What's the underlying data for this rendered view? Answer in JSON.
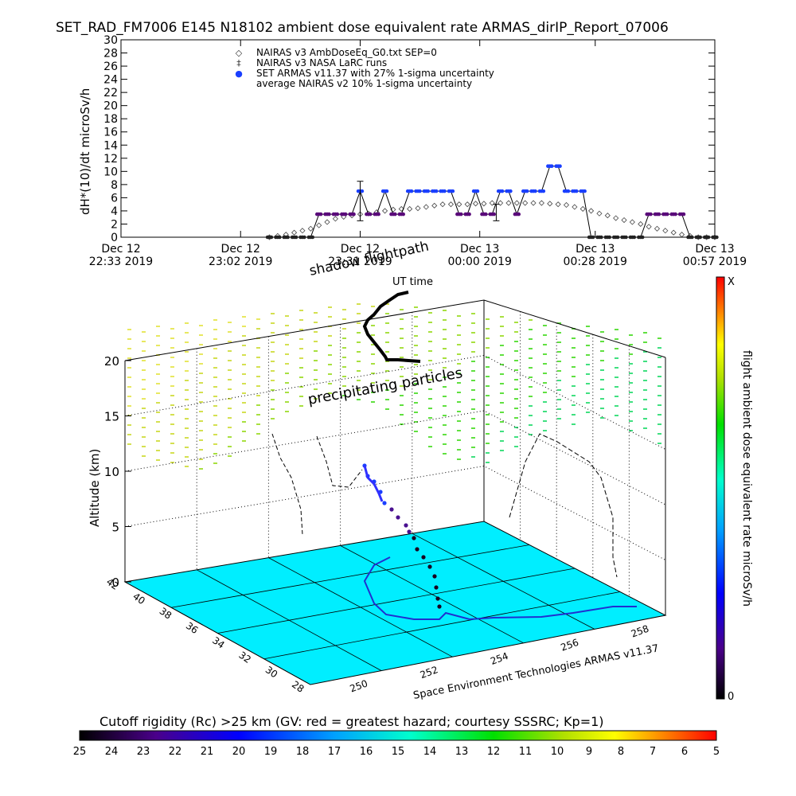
{
  "title": "SET_RAD_FM7006  E145 N18102 ambient dose equivalent rate ARMAS_dirIP_Report_07006",
  "chart_data": [
    {
      "type": "scatter",
      "panel": "dose-rate time series",
      "ylabel": "dH*(10)/dt microSv/h",
      "ylim": [
        0,
        30
      ],
      "y_ticks": [
        0,
        2,
        4,
        6,
        8,
        10,
        12,
        14,
        16,
        18,
        20,
        22,
        24,
        26,
        28,
        30
      ],
      "x_ticks": [
        {
          "line1": "Dec 12",
          "line2": "22:33 2019"
        },
        {
          "line1": "Dec 12",
          "line2": "23:02 2019"
        },
        {
          "line1": "Dec 12",
          "line2": "23:31 2019"
        },
        {
          "line1": "Dec 13",
          "line2": "00:00 2019"
        },
        {
          "line1": "Dec 13",
          "line2": "00:28 2019"
        },
        {
          "line1": "Dec 13",
          "line2": "00:57 2019"
        }
      ],
      "x_tick_minutes": [
        0,
        29,
        58,
        87,
        115,
        144
      ],
      "legend": [
        {
          "symbol": "◇",
          "label": "NAIRAS v3 AmbDoseEq_G0.txt SEP=0"
        },
        {
          "symbol": "‡",
          "label": "NAIRAS v3 NASA LaRC runs"
        },
        {
          "symbol": "●",
          "label": "SET ARMAS v11.37 with 27% 1-sigma uncertainty"
        },
        {
          "symbol": "",
          "label": "average NAIRAS v2 10% 1-sigma uncertainty"
        }
      ],
      "legend_position": "top-left",
      "series": [
        {
          "name": "NAIRAS v3 AmbDoseEq_G0.txt SEP=0",
          "marker": "diamond",
          "x_minutes": [
            36,
            38,
            40,
            42,
            44,
            46,
            48,
            50,
            52,
            54,
            56,
            58,
            60,
            62,
            64,
            66,
            68,
            70,
            72,
            74,
            76,
            78,
            80,
            82,
            84,
            86,
            88,
            90,
            92,
            94,
            96,
            98,
            100,
            102,
            104,
            106,
            108,
            110,
            112,
            114,
            116,
            118,
            120,
            122,
            124,
            126,
            128,
            130,
            132,
            134,
            136,
            138,
            140,
            142,
            144
          ],
          "values": [
            0,
            0.2,
            0.4,
            0.7,
            1,
            1.3,
            1.8,
            2.3,
            2.8,
            3.1,
            3.3,
            3.5,
            3.6,
            3.8,
            4,
            4.2,
            4.3,
            4.3,
            4.4,
            4.6,
            4.8,
            5,
            5,
            5,
            5,
            5.1,
            5.1,
            5.2,
            5.2,
            5.2,
            5.2,
            5.2,
            5.2,
            5.2,
            5.1,
            5,
            4.9,
            4.6,
            4.3,
            4,
            3.6,
            3.3,
            2.9,
            2.6,
            2.3,
            2,
            1.6,
            1.3,
            1,
            0.7,
            0.4,
            0.2,
            0,
            0,
            0
          ]
        },
        {
          "name": "SET ARMAS v11.37 with 27% 1-sigma uncertainty",
          "marker": "filled-circle",
          "x_minutes": [
            36,
            38,
            40,
            42,
            44,
            46,
            48,
            50,
            52,
            54,
            56,
            58,
            60,
            62,
            64,
            66,
            68,
            70,
            72,
            74,
            76,
            78,
            80,
            82,
            84,
            86,
            88,
            90,
            92,
            94,
            96,
            98,
            100,
            102,
            104,
            106,
            108,
            110,
            112,
            114,
            116,
            118,
            120,
            122,
            124,
            126,
            128,
            130,
            132,
            134,
            136,
            138,
            140,
            142,
            144
          ],
          "values": [
            0,
            0,
            0,
            0,
            0,
            0,
            3.5,
            3.5,
            3.5,
            3.5,
            3.5,
            7,
            3.5,
            3.5,
            7,
            3.5,
            3.5,
            7,
            7,
            7,
            7,
            7,
            7,
            3.5,
            3.5,
            7,
            3.5,
            3.5,
            7,
            7,
            3.5,
            7,
            7,
            7,
            10.8,
            10.8,
            7,
            7,
            7,
            0,
            0,
            0,
            0,
            0,
            0,
            0,
            3.5,
            3.5,
            3.5,
            3.5,
            3.5,
            0,
            0,
            0,
            0
          ]
        }
      ],
      "error_bars": [
        {
          "x_minutes": 58,
          "low": 2.5,
          "high": 8.5
        },
        {
          "x_minutes": 91,
          "low": 2.5,
          "high": 5
        }
      ]
    },
    {
      "type": "scatter",
      "panel": "3D flight path over cutoff-rigidity map",
      "zlabel": "Altitude (km)",
      "z_ticks": [
        0,
        5,
        10,
        15,
        20
      ],
      "lat_ticks": [
        28,
        30,
        32,
        34,
        36,
        38,
        40,
        42
      ],
      "lon_ticks": [
        250,
        252,
        254,
        256,
        258
      ],
      "annotations": [
        "shadow flightpath",
        "UT time",
        "precipitating particles"
      ],
      "credit": "Space Environment Technologies ARMAS v11.37",
      "colorbar_label": "flight ambient dose equivalent rate microSv/h",
      "colorbar_top_label": "X",
      "colorbar_bottom_label": "0",
      "rigidity_label": "Cutoff rigidity (Rc) >25 km (GV: red = greatest hazard; courtesy SSSRC; Kp=1)",
      "rigidity_ticks": [
        25,
        24,
        23,
        22,
        21,
        20,
        19,
        18,
        17,
        16,
        15,
        14,
        13,
        12,
        11,
        10,
        9,
        8,
        7,
        6,
        5
      ],
      "colors": {
        "map_fill": "#00eeff",
        "diamond": "#555555",
        "armas_purple": "#5a0a7a",
        "armas_blue": "#1a3fff"
      }
    }
  ]
}
